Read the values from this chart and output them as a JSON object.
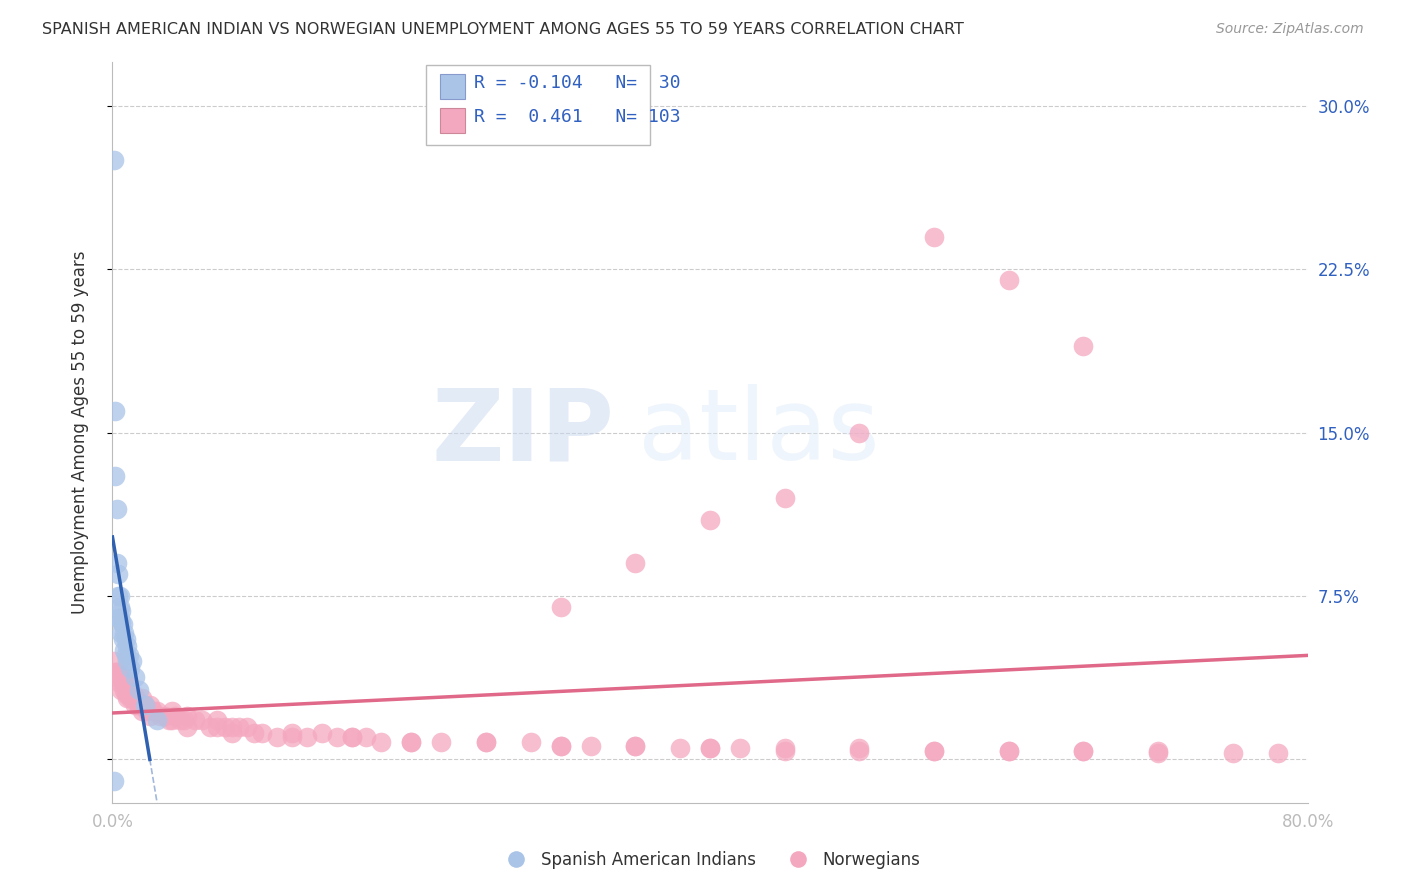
{
  "title": "SPANISH AMERICAN INDIAN VS NORWEGIAN UNEMPLOYMENT AMONG AGES 55 TO 59 YEARS CORRELATION CHART",
  "source": "Source: ZipAtlas.com",
  "ylabel": "Unemployment Among Ages 55 to 59 years",
  "xlim": [
    0.0,
    0.8
  ],
  "ylim": [
    -0.02,
    0.32
  ],
  "xticks": [
    0.0,
    0.1,
    0.2,
    0.3,
    0.4,
    0.5,
    0.6,
    0.7,
    0.8
  ],
  "xticklabels": [
    "0.0%",
    "",
    "",
    "",
    "",
    "",
    "",
    "",
    "80.0%"
  ],
  "yticks": [
    0.0,
    0.075,
    0.15,
    0.225,
    0.3
  ],
  "yticklabels": [
    "",
    "7.5%",
    "15.0%",
    "22.5%",
    "30.0%"
  ],
  "legend1_R": "-0.104",
  "legend1_N": "30",
  "legend2_R": "0.461",
  "legend2_N": "103",
  "blue_color": "#aac4e8",
  "pink_color": "#f4a8c0",
  "blue_line_color": "#3060b0",
  "pink_line_color": "#e06888",
  "grid_color": "#cccccc",
  "background_color": "#ffffff",
  "watermark_zip": "ZIP",
  "watermark_atlas": "atlas",
  "blue_scatter_x": [
    0.001,
    0.002,
    0.002,
    0.003,
    0.003,
    0.004,
    0.004,
    0.004,
    0.005,
    0.005,
    0.005,
    0.006,
    0.006,
    0.006,
    0.007,
    0.007,
    0.008,
    0.008,
    0.009,
    0.009,
    0.01,
    0.01,
    0.011,
    0.012,
    0.013,
    0.015,
    0.018,
    0.022,
    0.03,
    0.001
  ],
  "blue_scatter_y": [
    0.275,
    0.16,
    0.13,
    0.115,
    0.09,
    0.085,
    0.075,
    0.065,
    0.075,
    0.07,
    0.065,
    0.068,
    0.063,
    0.058,
    0.062,
    0.055,
    0.058,
    0.05,
    0.055,
    0.048,
    0.052,
    0.045,
    0.048,
    0.042,
    0.045,
    0.038,
    0.032,
    0.025,
    0.018,
    -0.01
  ],
  "pink_scatter_x": [
    0.001,
    0.002,
    0.003,
    0.004,
    0.005,
    0.005,
    0.006,
    0.006,
    0.007,
    0.007,
    0.008,
    0.008,
    0.009,
    0.009,
    0.01,
    0.01,
    0.011,
    0.012,
    0.012,
    0.013,
    0.014,
    0.015,
    0.015,
    0.016,
    0.017,
    0.018,
    0.02,
    0.02,
    0.022,
    0.023,
    0.025,
    0.025,
    0.027,
    0.03,
    0.032,
    0.035,
    0.038,
    0.04,
    0.04,
    0.042,
    0.045,
    0.048,
    0.05,
    0.05,
    0.055,
    0.06,
    0.065,
    0.07,
    0.07,
    0.075,
    0.08,
    0.085,
    0.09,
    0.095,
    0.1,
    0.11,
    0.12,
    0.13,
    0.14,
    0.15,
    0.16,
    0.17,
    0.18,
    0.2,
    0.22,
    0.25,
    0.28,
    0.3,
    0.32,
    0.35,
    0.38,
    0.4,
    0.42,
    0.45,
    0.5,
    0.55,
    0.6,
    0.65,
    0.7,
    0.75,
    0.78,
    0.08,
    0.12,
    0.16,
    0.2,
    0.25,
    0.3,
    0.35,
    0.4,
    0.45,
    0.5,
    0.55,
    0.6,
    0.65,
    0.7,
    0.55,
    0.6,
    0.65,
    0.5,
    0.45,
    0.4,
    0.35,
    0.3
  ],
  "pink_scatter_y": [
    0.045,
    0.04,
    0.04,
    0.038,
    0.04,
    0.035,
    0.038,
    0.032,
    0.038,
    0.035,
    0.035,
    0.032,
    0.035,
    0.03,
    0.032,
    0.028,
    0.032,
    0.03,
    0.028,
    0.028,
    0.03,
    0.028,
    0.025,
    0.028,
    0.025,
    0.025,
    0.028,
    0.022,
    0.025,
    0.022,
    0.025,
    0.02,
    0.022,
    0.022,
    0.02,
    0.02,
    0.018,
    0.022,
    0.018,
    0.02,
    0.018,
    0.018,
    0.02,
    0.015,
    0.018,
    0.018,
    0.015,
    0.018,
    0.015,
    0.015,
    0.015,
    0.015,
    0.015,
    0.012,
    0.012,
    0.01,
    0.012,
    0.01,
    0.012,
    0.01,
    0.01,
    0.01,
    0.008,
    0.008,
    0.008,
    0.008,
    0.008,
    0.006,
    0.006,
    0.006,
    0.005,
    0.005,
    0.005,
    0.004,
    0.004,
    0.004,
    0.004,
    0.004,
    0.003,
    0.003,
    0.003,
    0.012,
    0.01,
    0.01,
    0.008,
    0.008,
    0.006,
    0.006,
    0.005,
    0.005,
    0.005,
    0.004,
    0.004,
    0.004,
    0.004,
    0.24,
    0.22,
    0.19,
    0.15,
    0.12,
    0.11,
    0.09,
    0.07
  ]
}
